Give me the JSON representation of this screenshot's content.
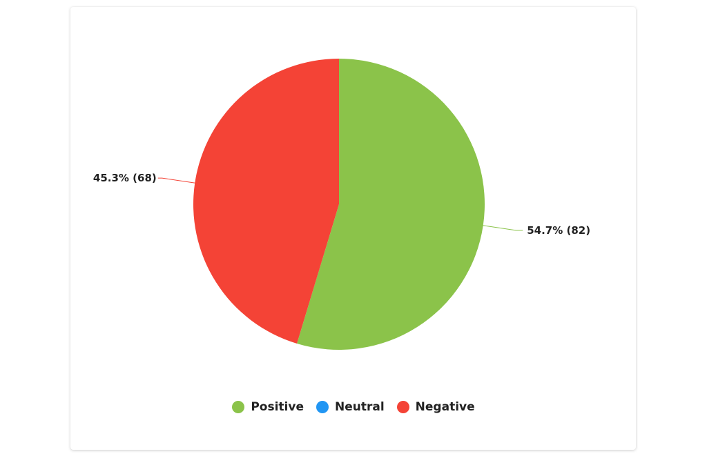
{
  "chart_data": {
    "type": "pie",
    "title": "",
    "categories": [
      "Positive",
      "Neutral",
      "Negative"
    ],
    "values": [
      82,
      0,
      68
    ],
    "percentages": [
      54.7,
      0,
      45.3
    ],
    "colors": [
      "#8bc34a",
      "#2196f3",
      "#f44336"
    ],
    "labels": [
      "54.7% (82)",
      "",
      "45.3% (68)"
    ],
    "legend_position": "bottom"
  },
  "legend": {
    "items": [
      {
        "label": "Positive",
        "color": "#8bc34a"
      },
      {
        "label": "Neutral",
        "color": "#2196f3"
      },
      {
        "label": "Negative",
        "color": "#f44336"
      }
    ]
  }
}
